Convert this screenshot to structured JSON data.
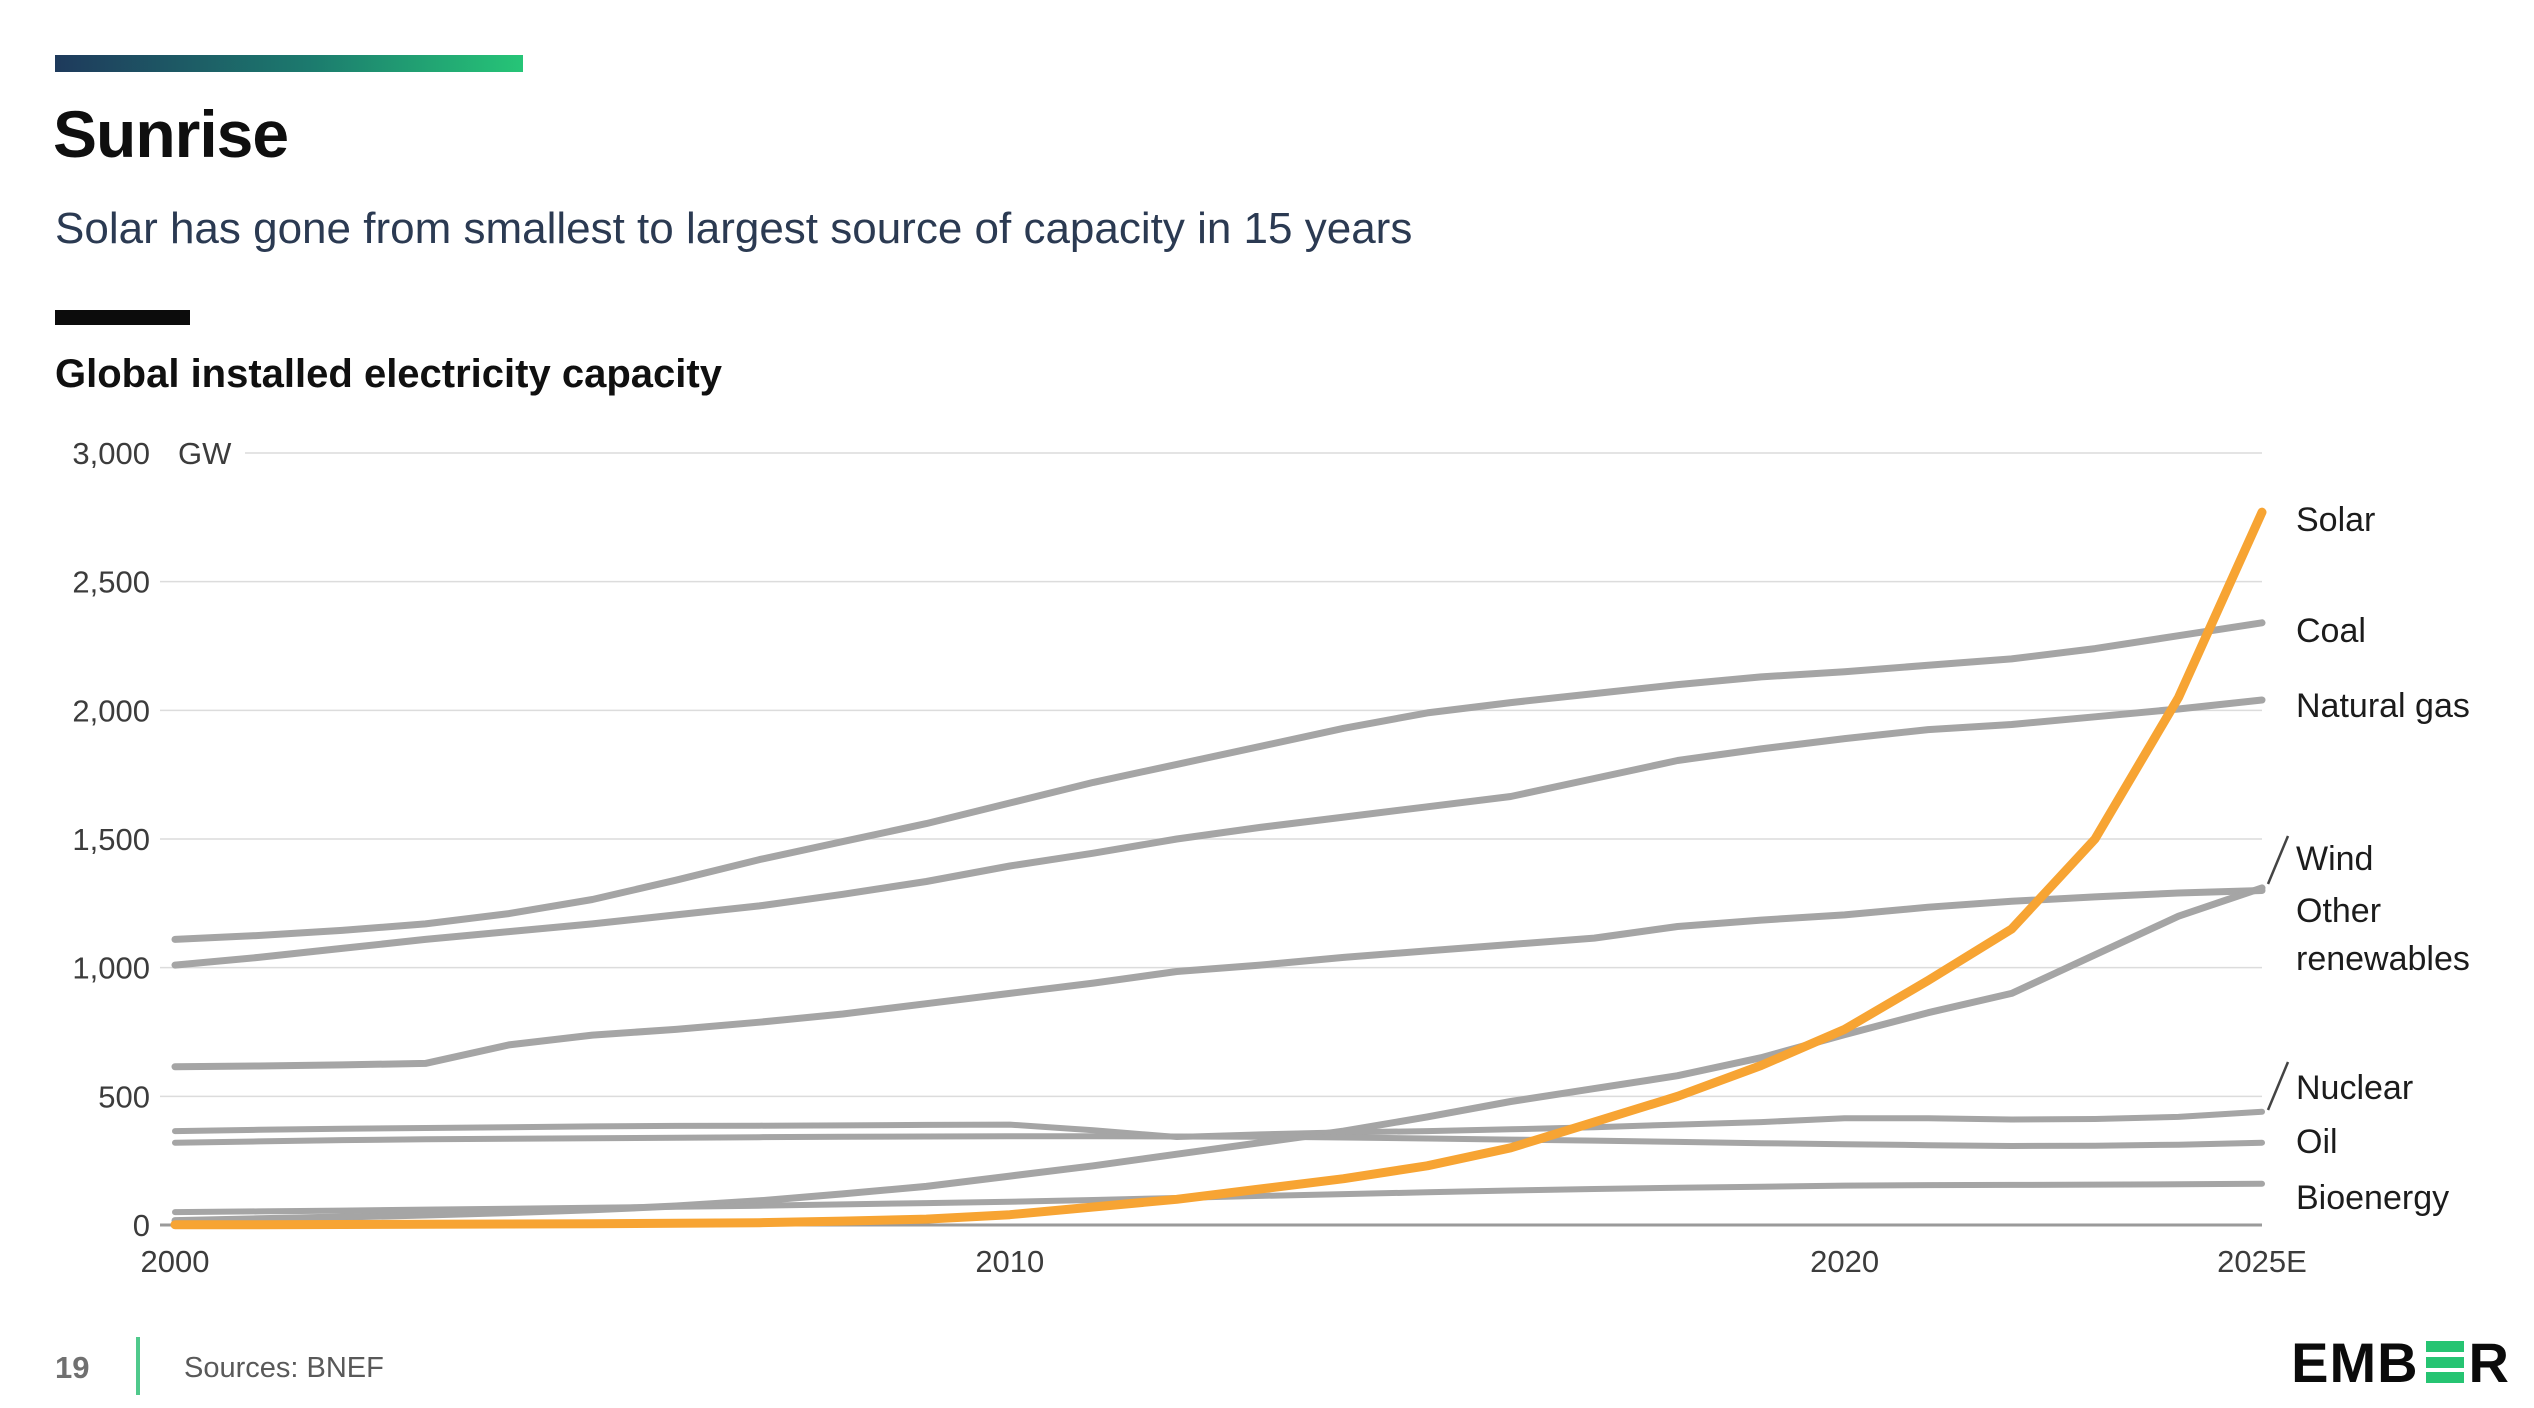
{
  "slide": {
    "title": "Sunrise",
    "subtitle": "Solar has gone from smallest to largest source of capacity in 15 years",
    "chart_heading": "Global installed electricity capacity",
    "page_number": "19",
    "sources": "Sources: BNEF",
    "logo_prefix": "EMB",
    "logo_suffix": "R"
  },
  "colors": {
    "accent_orange": "#F7A433",
    "line_gray": "#A5A5A5",
    "gridline": "#DCDCDC",
    "axis": "#9A9A9A",
    "subtitle_navy": "#2B3A52",
    "gradient_start": "#1E3A5C",
    "gradient_end": "#26C577",
    "footer_green": "#50C98C",
    "logo_green": "#26C472"
  },
  "chart_data": {
    "type": "line",
    "title": "Global installed electricity capacity",
    "xlabel": "",
    "ylabel": "GW",
    "ylim": [
      0,
      3000
    ],
    "grid": "horizontal",
    "legend_position": "right-edge-labels",
    "yticks": [
      {
        "value": 0,
        "label": "0"
      },
      {
        "value": 500,
        "label": "500"
      },
      {
        "value": 1000,
        "label": "1,000"
      },
      {
        "value": 1500,
        "label": "1,500"
      },
      {
        "value": 2000,
        "label": "2,000"
      },
      {
        "value": 2500,
        "label": "2,500"
      },
      {
        "value": 3000,
        "label": "3,000"
      }
    ],
    "xticks": [
      {
        "year": 2000,
        "label": "2000"
      },
      {
        "year": 2010,
        "label": "2010"
      },
      {
        "year": 2020,
        "label": "2020"
      },
      {
        "year": 2025,
        "label": "2025E"
      }
    ],
    "x": [
      2000,
      2001,
      2002,
      2003,
      2004,
      2005,
      2006,
      2007,
      2008,
      2009,
      2010,
      2011,
      2012,
      2013,
      2014,
      2015,
      2016,
      2017,
      2018,
      2019,
      2020,
      2021,
      2022,
      2023,
      2024,
      2025
    ],
    "series": [
      {
        "id": "coal",
        "name": "Coal",
        "color": "#A5A5A5",
        "width": 7,
        "values": [
          1110,
          1125,
          1145,
          1170,
          1210,
          1265,
          1340,
          1420,
          1490,
          1560,
          1640,
          1720,
          1790,
          1860,
          1930,
          1990,
          2030,
          2065,
          2100,
          2130,
          2150,
          2175,
          2200,
          2240,
          2290,
          2340
        ]
      },
      {
        "id": "natural-gas",
        "name": "Natural gas",
        "color": "#A5A5A5",
        "width": 7,
        "values": [
          1010,
          1040,
          1075,
          1110,
          1140,
          1170,
          1205,
          1240,
          1285,
          1335,
          1395,
          1445,
          1500,
          1545,
          1585,
          1625,
          1665,
          1735,
          1805,
          1850,
          1890,
          1925,
          1945,
          1975,
          2005,
          2040
        ]
      },
      {
        "id": "other-renewables",
        "name": "Other renewables",
        "color": "#A5A5A5",
        "width": 7,
        "values": [
          615,
          618,
          622,
          628,
          700,
          738,
          760,
          788,
          820,
          860,
          900,
          940,
          985,
          1010,
          1040,
          1065,
          1090,
          1115,
          1160,
          1185,
          1205,
          1235,
          1258,
          1275,
          1290,
          1300
        ]
      },
      {
        "id": "wind",
        "name": "Wind",
        "color": "#A5A5A5",
        "width": 7,
        "values": [
          17,
          24,
          31,
          39,
          48,
          59,
          74,
          94,
          121,
          150,
          190,
          230,
          275,
          320,
          365,
          420,
          480,
          530,
          580,
          650,
          740,
          825,
          900,
          1050,
          1200,
          1310
        ]
      },
      {
        "id": "nuclear",
        "name": "Nuclear",
        "color": "#A5A5A5",
        "width": 6,
        "values": [
          365,
          370,
          374,
          377,
          380,
          383,
          385,
          386,
          387,
          389,
          390,
          368,
          342,
          352,
          360,
          365,
          372,
          380,
          390,
          400,
          415,
          415,
          410,
          412,
          420,
          440
        ]
      },
      {
        "id": "oil",
        "name": "Oil",
        "color": "#A5A5A5",
        "width": 6,
        "values": [
          320,
          325,
          330,
          333,
          335,
          337,
          339,
          341,
          343,
          344,
          345,
          345,
          344,
          343,
          340,
          336,
          332,
          328,
          323,
          318,
          314,
          310,
          307,
          308,
          312,
          320
        ]
      },
      {
        "id": "bioenergy",
        "name": "Bioenergy",
        "color": "#A5A5A5",
        "width": 6,
        "values": [
          50,
          53,
          56,
          60,
          63,
          67,
          71,
          75,
          80,
          85,
          90,
          97,
          105,
          113,
          120,
          127,
          134,
          140,
          145,
          149,
          153,
          155,
          156,
          157,
          158,
          160
        ]
      },
      {
        "id": "solar",
        "name": "Solar",
        "color": "#F7A433",
        "width": 9,
        "values": [
          1,
          1,
          2,
          3,
          4,
          5,
          7,
          9,
          15,
          23,
          40,
          70,
          100,
          140,
          180,
          230,
          300,
          400,
          500,
          620,
          760,
          950,
          1150,
          1500,
          2050,
          2770
        ]
      }
    ],
    "right_labels": [
      {
        "text": "Solar",
        "gw": 2744,
        "color": "#F7A433"
      },
      {
        "text": "Coal",
        "gw": 2313,
        "color": "#1C1C1C"
      },
      {
        "text": "Natural gas",
        "gw": 2021,
        "color": "#1C1C1C"
      },
      {
        "text": "Wind",
        "gw": 1427,
        "color": "#1C1C1C"
      },
      {
        "text": "Other",
        "gw": 1224,
        "color": "#1C1C1C"
      },
      {
        "text": "renewables",
        "gw": 1038,
        "color": "#1C1C1C"
      },
      {
        "text": "Nuclear",
        "gw": 536,
        "color": "#1C1C1C"
      },
      {
        "text": "Oil",
        "gw": 326,
        "color": "#1C1C1C"
      },
      {
        "text": "Bioenergy",
        "gw": 109,
        "color": "#1C1C1C"
      }
    ]
  }
}
